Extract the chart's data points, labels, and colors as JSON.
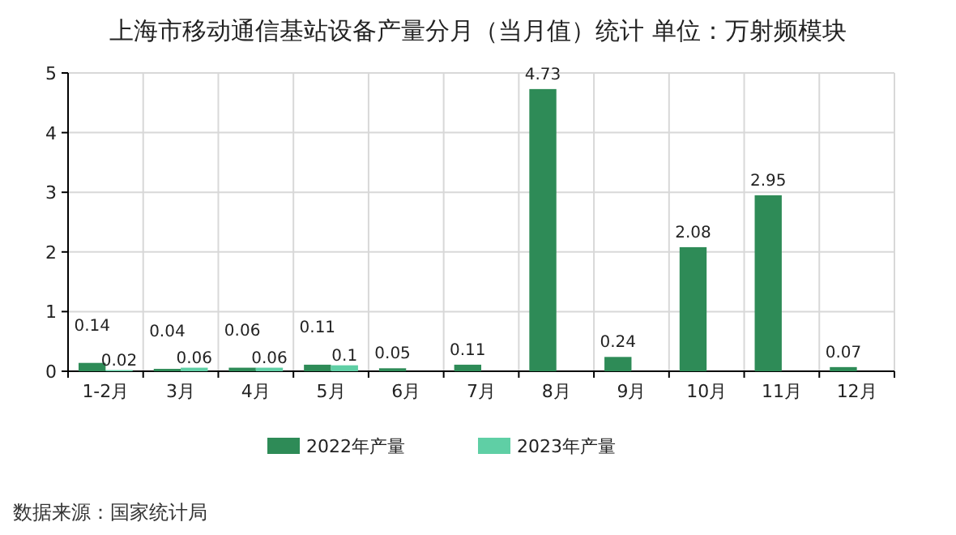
{
  "chart_data": {
    "type": "bar",
    "title": "上海市移动通信基站设备产量分月（当月值）统计  单位：万射频模块",
    "categories": [
      "1-2月",
      "3月",
      "4月",
      "5月",
      "6月",
      "7月",
      "8月",
      "9月",
      "10月",
      "11月",
      "12月"
    ],
    "series": [
      {
        "name": "2022年产量",
        "color": "#2e8b57",
        "values": [
          0.14,
          0.04,
          0.06,
          0.11,
          0.05,
          0.11,
          4.73,
          0.24,
          2.08,
          2.95,
          0.07
        ]
      },
      {
        "name": "2023年产量",
        "color": "#5fcfa5",
        "values": [
          0.02,
          0.06,
          0.06,
          0.1,
          null,
          null,
          null,
          null,
          null,
          null,
          null
        ]
      }
    ],
    "ylim": [
      0,
      5
    ],
    "yticks": [
      0,
      1,
      2,
      3,
      4,
      5
    ],
    "grid": true,
    "legend": "bottom",
    "data_labels": true,
    "annotations": [
      "数据来源：国家统计局"
    ]
  }
}
